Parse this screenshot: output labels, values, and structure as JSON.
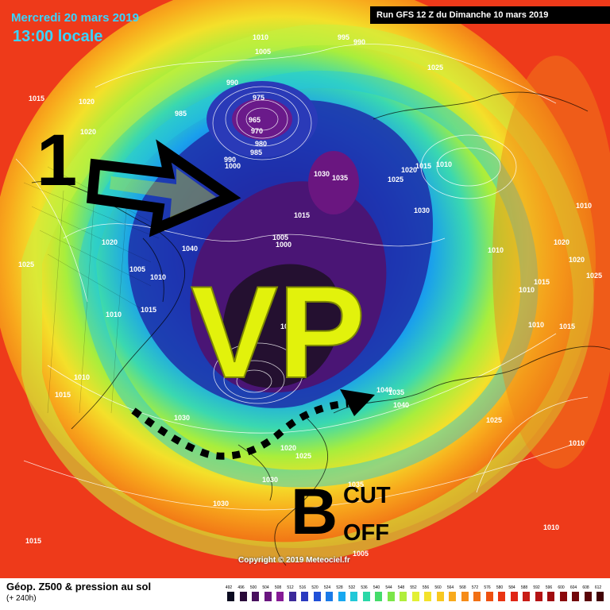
{
  "header": {
    "date": "Mercredi 20 mars 2019",
    "time": "13:00 locale",
    "run": "Run GFS 12 Z du Dimanche 10 mars 2019"
  },
  "annotations": {
    "vp": "VP",
    "one": "1",
    "b": "B",
    "cut": "CUT",
    "off": "OFF"
  },
  "pressure_labels": [
    "1010",
    "995",
    "990",
    "1005",
    "1025",
    "1015",
    "1020",
    "1020",
    "990",
    "985",
    "975",
    "965",
    "970",
    "980",
    "985",
    "990",
    "1000",
    "1030",
    "1035",
    "1020",
    "1015",
    "1010",
    "1025",
    "1030",
    "1015",
    "1010",
    "1020",
    "1005",
    "1000",
    "1040",
    "1025",
    "1005",
    "1010",
    "1015",
    "1010",
    "1010",
    "1020",
    "1015",
    "1010",
    "1020",
    "1025",
    "1010",
    "990",
    "1010",
    "1015",
    "1030",
    "1040",
    "1035",
    "1040",
    "1010",
    "1015",
    "1025",
    "1030",
    "1035",
    "1020",
    "1025",
    "1030",
    "1010",
    "1010",
    "1015",
    "1005"
  ],
  "copyright": "Copyright © 2019 Meteociel.fr",
  "legend": {
    "title": "Géop. Z500 & pression au sol",
    "subtitle": "(+ 240h)",
    "ticks": [
      "492",
      "496",
      "500",
      "504",
      "508",
      "512",
      "516",
      "520",
      "524",
      "528",
      "532",
      "536",
      "540",
      "544",
      "548",
      "552",
      "556",
      "560",
      "564",
      "568",
      "572",
      "576",
      "580",
      "584",
      "588",
      "592",
      "596",
      "600",
      "604",
      "608",
      "612"
    ],
    "colors": [
      "#0b0b20",
      "#2a0a3a",
      "#48105e",
      "#6a1680",
      "#861a96",
      "#3c2a9a",
      "#2a3ac0",
      "#2050d8",
      "#1a7ae8",
      "#18a8f0",
      "#22c8d8",
      "#2ad8a8",
      "#44dc6a",
      "#7ce648",
      "#b0ee3c",
      "#e2f034",
      "#f4e22a",
      "#f8c820",
      "#f8aa1c",
      "#f68c18",
      "#f27014",
      "#ee5010",
      "#ea3412",
      "#e02616",
      "#c81c16",
      "#b41214",
      "#a00c10",
      "#8a080c",
      "#72060a",
      "#5a0408",
      "#420206"
    ]
  }
}
